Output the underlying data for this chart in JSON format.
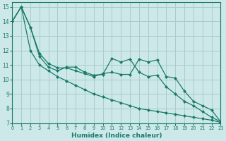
{
  "bg_color": "#cce8e8",
  "grid_color": "#aacccc",
  "line_color": "#1a7a6a",
  "xlabel": "Humidex (Indice chaleur)",
  "xlim": [
    0,
    23
  ],
  "ylim": [
    7,
    15.3
  ],
  "yticks": [
    7,
    8,
    9,
    10,
    11,
    12,
    13,
    14,
    15
  ],
  "xticks": [
    0,
    1,
    2,
    3,
    4,
    5,
    6,
    7,
    8,
    9,
    10,
    11,
    12,
    13,
    14,
    15,
    16,
    17,
    18,
    19,
    20,
    21,
    22,
    23
  ],
  "line1_x": [
    0,
    1,
    2,
    3,
    4,
    5,
    6,
    7,
    8,
    9,
    10,
    11,
    12,
    13,
    14,
    15,
    16,
    17,
    18,
    19,
    20,
    21,
    22,
    23
  ],
  "line1_y": [
    14.0,
    15.0,
    13.6,
    11.8,
    11.1,
    10.8,
    10.8,
    10.6,
    10.4,
    10.2,
    10.4,
    10.5,
    10.35,
    10.35,
    11.4,
    11.2,
    11.35,
    10.2,
    10.1,
    9.2,
    8.5,
    8.2,
    7.9,
    7.1
  ],
  "line2_x": [
    0,
    1,
    2,
    3,
    4,
    5,
    6,
    7,
    8,
    9,
    10,
    11,
    12,
    13,
    14,
    15,
    16,
    17,
    18,
    19,
    20,
    21,
    22,
    23
  ],
  "line2_y": [
    14.0,
    15.0,
    13.6,
    11.6,
    10.85,
    10.6,
    10.85,
    10.85,
    10.5,
    10.3,
    10.35,
    11.45,
    11.2,
    11.4,
    10.5,
    10.2,
    10.3,
    9.5,
    9.0,
    8.5,
    8.2,
    7.8,
    7.4,
    7.1
  ],
  "line3_x": [
    0,
    1,
    2,
    3,
    4,
    5,
    6,
    7,
    8,
    9,
    10,
    11,
    12,
    13,
    14,
    15,
    16,
    17,
    18,
    19,
    20,
    21,
    22,
    23
  ],
  "line3_y": [
    14.0,
    15.0,
    12.0,
    11.0,
    10.6,
    10.2,
    9.9,
    9.6,
    9.3,
    9.0,
    8.8,
    8.6,
    8.4,
    8.2,
    8.0,
    7.9,
    7.8,
    7.7,
    7.6,
    7.5,
    7.4,
    7.3,
    7.2,
    7.05
  ]
}
